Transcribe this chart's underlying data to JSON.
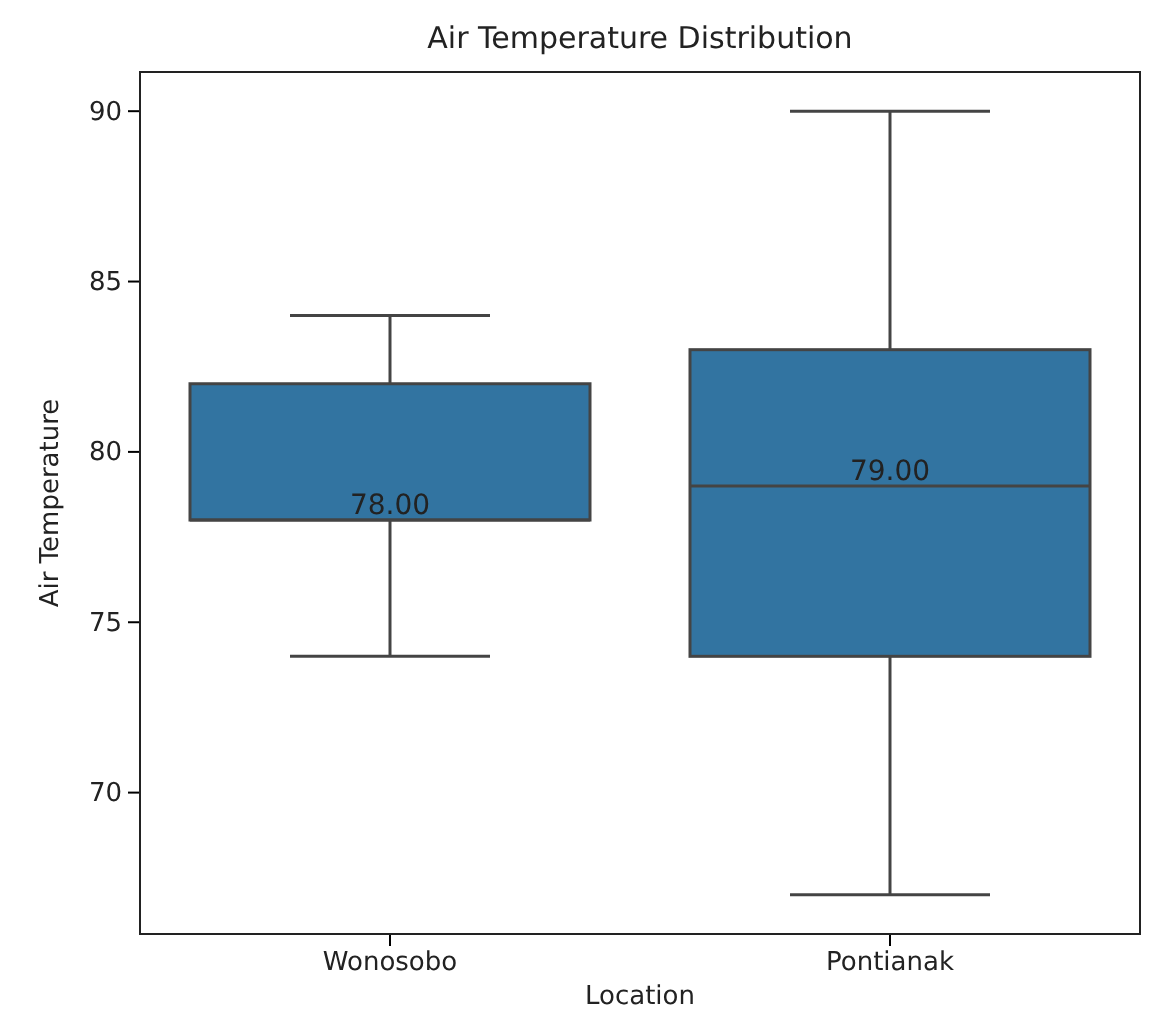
{
  "chart_data": {
    "type": "box",
    "title": "Air Temperature Distribution",
    "xlabel": "Location",
    "ylabel": "Air Temperature",
    "categories": [
      "Wonosobo",
      "Pontianak"
    ],
    "boxes": [
      {
        "low": 74,
        "q1": 78,
        "median": 78,
        "q3": 82,
        "high": 84
      },
      {
        "low": 67,
        "q1": 74,
        "median": 79,
        "q3": 83,
        "high": 90
      }
    ],
    "color": "#3274a1",
    "value_labels": [
      "78.00",
      "79.00"
    ],
    "ylim": [
      65.85,
      91.15
    ],
    "yticks": [
      70,
      75,
      80,
      85,
      90
    ],
    "grid": false
  }
}
